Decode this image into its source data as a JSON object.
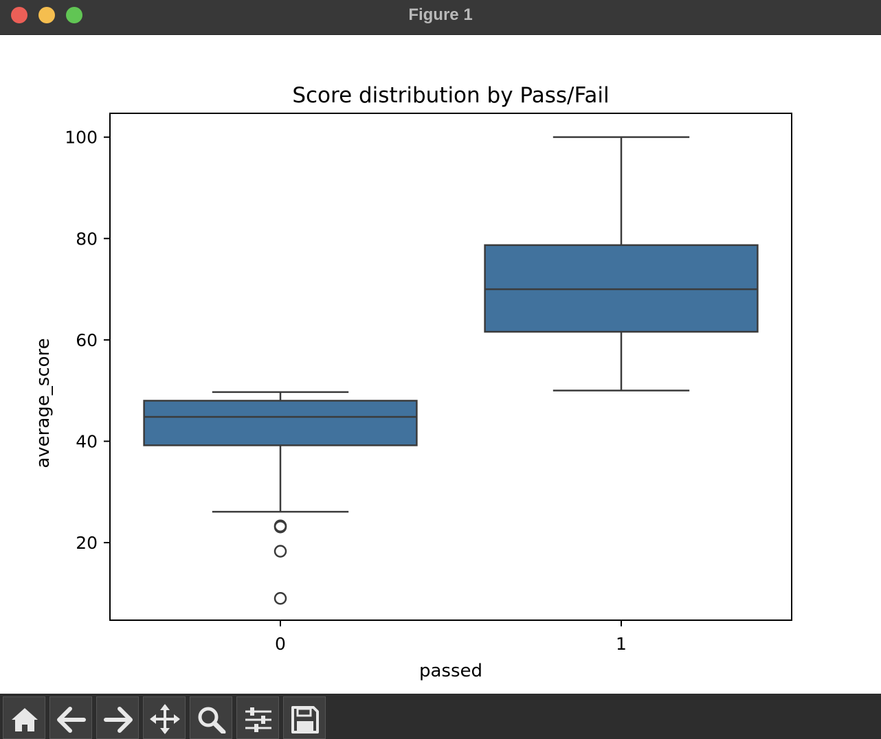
{
  "window": {
    "title": "Figure 1"
  },
  "toolbar": {
    "buttons": [
      {
        "name": "home-button",
        "icon": "home-icon"
      },
      {
        "name": "back-button",
        "icon": "arrow-left-icon"
      },
      {
        "name": "forward-button",
        "icon": "arrow-right-icon"
      },
      {
        "name": "pan-button",
        "icon": "move-icon"
      },
      {
        "name": "zoom-button",
        "icon": "search-icon"
      },
      {
        "name": "configure-subplots-button",
        "icon": "sliders-icon"
      },
      {
        "name": "save-button",
        "icon": "save-icon"
      }
    ]
  },
  "colors": {
    "box_fill": "#41729d",
    "line": "#3b3b3b",
    "titlebar": "#383838",
    "toolbar": "#2d2d2d"
  },
  "chart_data": {
    "type": "box",
    "title": "Score distribution by Pass/Fail",
    "xlabel": "passed",
    "ylabel": "average_score",
    "categories": [
      "0",
      "1"
    ],
    "ylim": [
      4.7,
      104.7
    ],
    "yticks": [
      20,
      40,
      60,
      80,
      100
    ],
    "boxes": [
      {
        "category": "0",
        "whisker_low": 26.1,
        "q1": 39.2,
        "median": 44.8,
        "q3": 48.0,
        "whisker_high": 49.7,
        "outliers": [
          23.3,
          23.1,
          18.3,
          9.0
        ]
      },
      {
        "category": "1",
        "whisker_low": 50.0,
        "q1": 61.6,
        "median": 70.0,
        "q3": 78.7,
        "whisker_high": 100.0,
        "outliers": []
      }
    ],
    "grid": false,
    "legend": "none"
  }
}
